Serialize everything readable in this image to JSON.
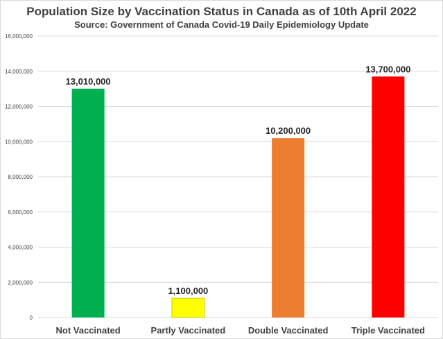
{
  "chart_data": {
    "type": "bar",
    "title": "Population Size by Vaccination Status in Canada as of 10th April 2022",
    "subtitle": "Source: Government of Canada Covid-19 Daily Epidemiology Update",
    "xlabel": "",
    "ylabel": "",
    "ylim": [
      0,
      16000000
    ],
    "yticks": [
      0,
      2000000,
      4000000,
      6000000,
      8000000,
      10000000,
      12000000,
      14000000,
      16000000
    ],
    "ytick_labels": [
      "0",
      "2,000,000",
      "4,000,000",
      "6,000,000",
      "8,000,000",
      "10,000,000",
      "12,000,000",
      "14,000,000",
      "16,000,000"
    ],
    "grid": true,
    "categories": [
      "Not Vaccinated",
      "Partly Vaccinated",
      "Double Vaccinated",
      "Triple Vaccinated"
    ],
    "values": [
      13010000,
      1100000,
      10200000,
      13700000
    ],
    "data_labels": [
      "13,010,000",
      "1,100,000",
      "10,200,000",
      "13,700,000"
    ],
    "colors": [
      "#00b050",
      "#ffff00",
      "#ed7d31",
      "#ff0000"
    ],
    "gridline_color": "#d9d9d9",
    "text_color": "#404040"
  }
}
